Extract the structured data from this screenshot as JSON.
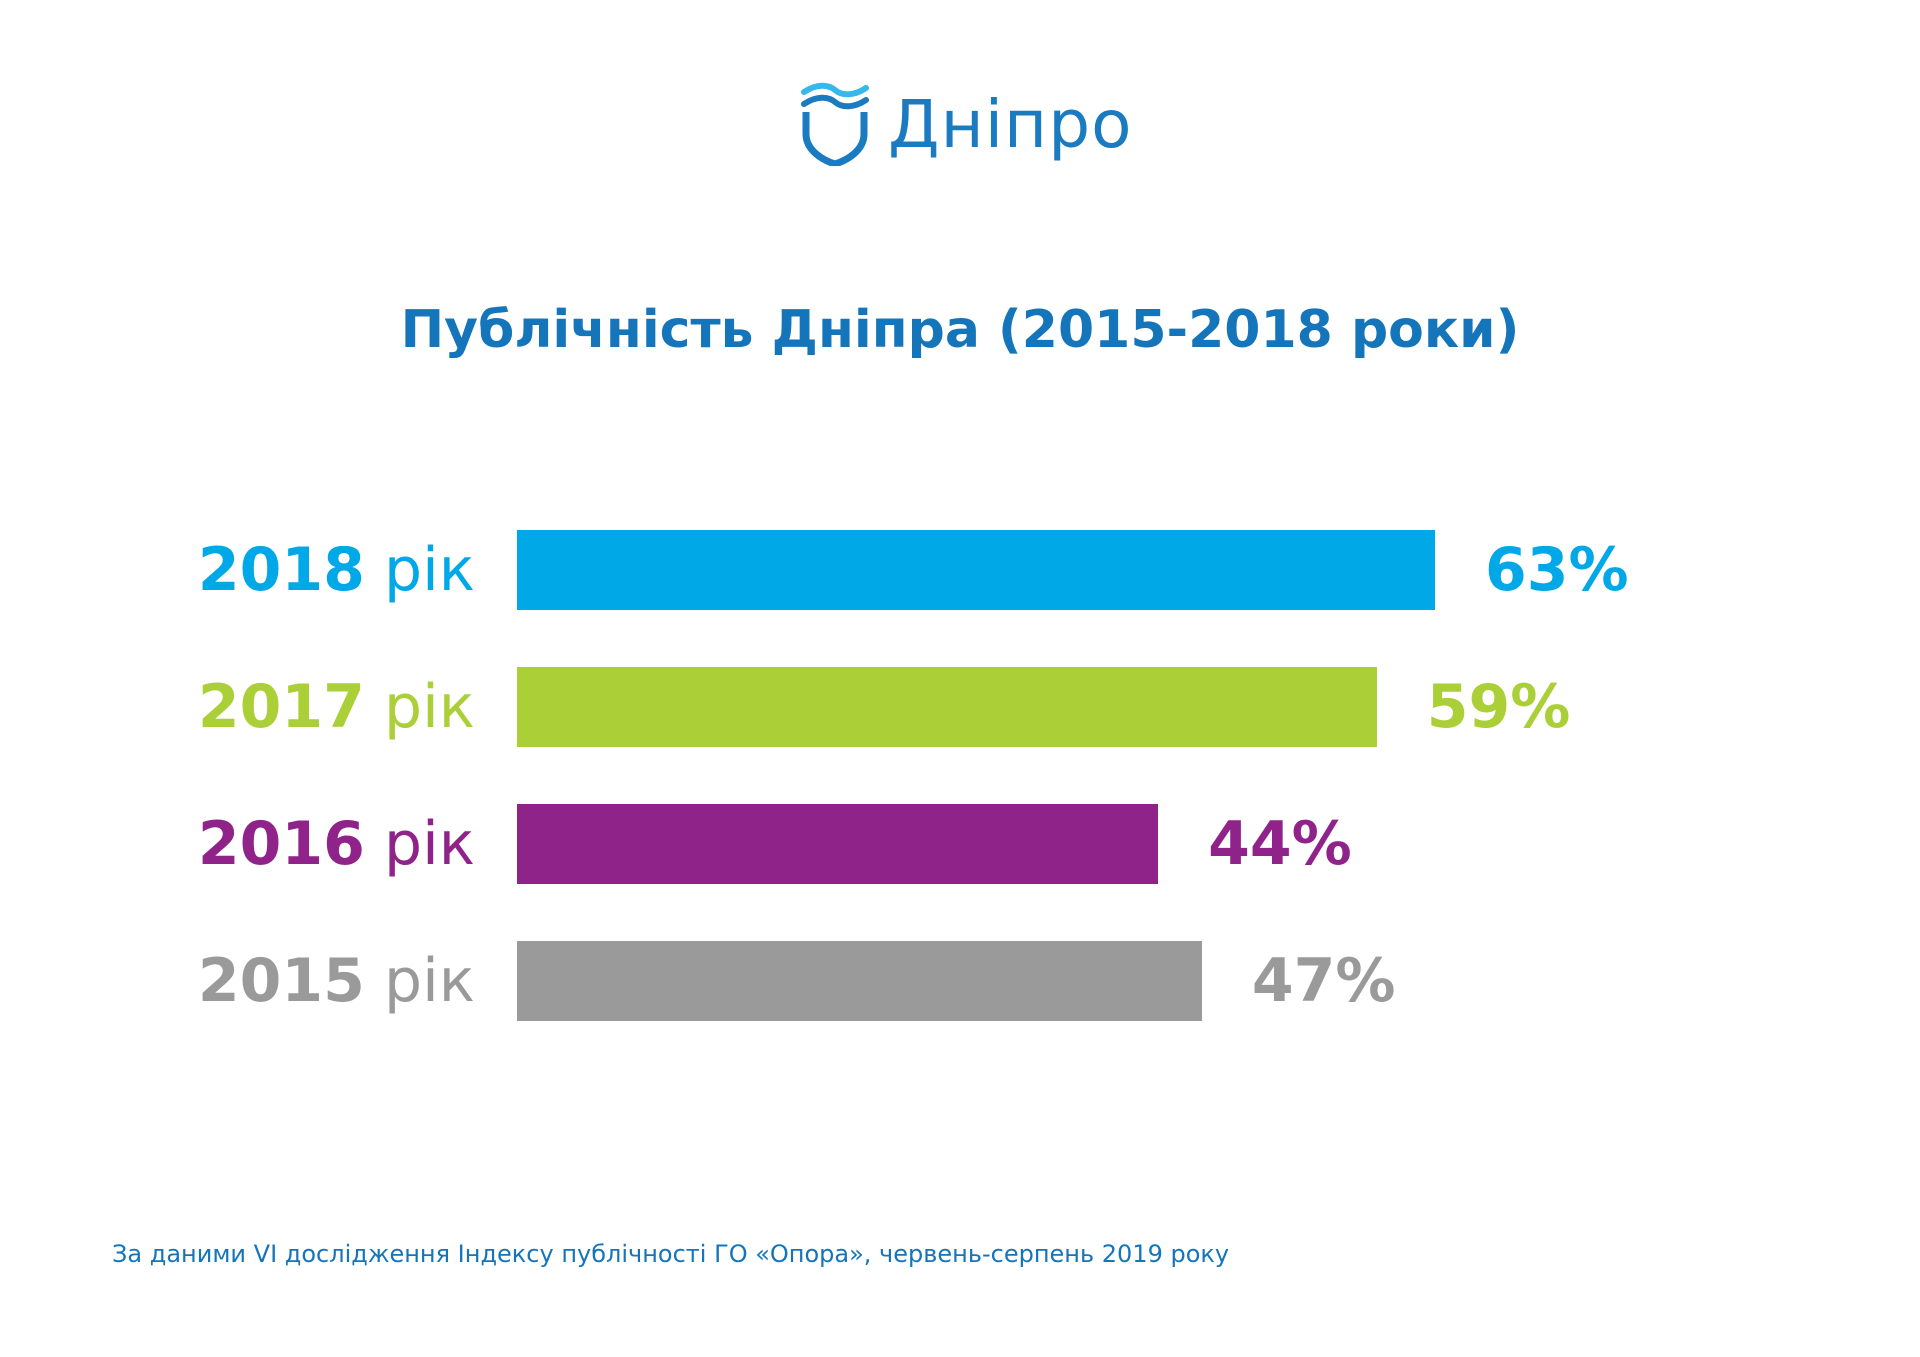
{
  "logo": {
    "text": "Дніпро",
    "icon": "shield-wave-icon",
    "color": "#1a7bc1"
  },
  "chart_data": {
    "type": "bar",
    "orientation": "horizontal",
    "title": "Публічність Дніпра (2015-2018 роки)",
    "categories": [
      "2018",
      "2017",
      "2016",
      "2015"
    ],
    "category_suffix": "рік",
    "values": [
      63,
      59,
      44,
      47
    ],
    "value_labels": [
      "63%",
      "59%",
      "44%",
      "47%"
    ],
    "colors": [
      "#00a8e8",
      "#aacf37",
      "#8f2389",
      "#9a9a9b"
    ],
    "xlim": [
      0,
      100
    ],
    "grid": false,
    "legend": "none"
  },
  "footnote": "За даними VI дослідження Індексу публічності ГО «Опора», червень-серпень 2019 року"
}
